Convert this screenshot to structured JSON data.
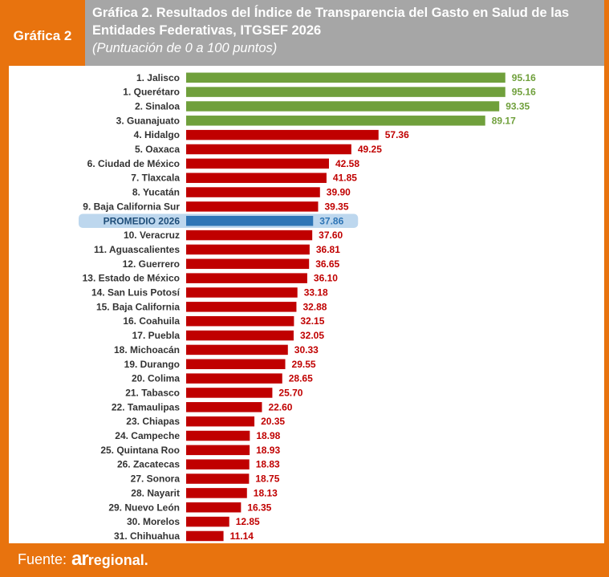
{
  "badge": "Gráfica 2",
  "header": {
    "title_line1": "Gráfica 2. Resultados del Índice de Transparencia del Gasto en Salud de las",
    "title_line2": "Entidades Federativas, ITGSEF 2026",
    "subtitle": "(Puntuación de 0 a 100 puntos)"
  },
  "footer": {
    "label": "Fuente:",
    "brand_prefix": "ar",
    "brand_suffix": "regional."
  },
  "colors": {
    "top": "#70a03c",
    "other": "#c00000",
    "average": "#2e75b6",
    "average_highlight": "#bdd7ee",
    "frame": "#e8730e",
    "header": "#a6a6a6"
  },
  "chart_data": {
    "type": "bar",
    "orientation": "horizontal",
    "xlim": [
      0,
      100
    ],
    "grid": false,
    "categories": [
      "1. Jalisco",
      "1. Querétaro",
      "2. Sinaloa",
      "3. Guanajuato",
      "4. Hidalgo",
      "5. Oaxaca",
      "6. Ciudad de México",
      "7. Tlaxcala",
      "8. Yucatán",
      "9. Baja California Sur",
      "PROMEDIO 2026",
      "10. Veracruz",
      "11. Aguascalientes",
      "12. Guerrero",
      "13. Estado de México",
      "14. San Luis Potosí",
      "15. Baja California",
      "16. Coahuila",
      "17. Puebla",
      "18. Michoacán",
      "19. Durango",
      "20. Colima",
      "21. Tabasco",
      "22. Tamaulipas",
      "23. Chiapas",
      "24. Campeche",
      "25. Quintana Roo",
      "26. Zacatecas",
      "27. Sonora",
      "28. Nayarit",
      "29. Nuevo León",
      "30. Morelos",
      "31. Chihuahua"
    ],
    "values": [
      95.16,
      95.16,
      93.35,
      89.17,
      57.36,
      49.25,
      42.58,
      41.85,
      39.9,
      39.35,
      37.86,
      37.6,
      36.81,
      36.65,
      36.1,
      33.18,
      32.88,
      32.15,
      32.05,
      30.33,
      29.55,
      28.65,
      25.7,
      22.6,
      20.35,
      18.98,
      18.93,
      18.83,
      18.75,
      18.13,
      16.35,
      12.85,
      11.14
    ],
    "value_labels": [
      "95.16",
      "95.16",
      "93.35",
      "89.17",
      "57.36",
      "49.25",
      "42.58",
      "41.85",
      "39.90",
      "39.35",
      "37.86",
      "37.60",
      "36.81",
      "36.65",
      "36.10",
      "33.18",
      "32.88",
      "32.15",
      "32.05",
      "30.33",
      "29.55",
      "28.65",
      "25.70",
      "22.60",
      "20.35",
      "18.98",
      "18.93",
      "18.83",
      "18.75",
      "18.13",
      "16.35",
      "12.85",
      "11.14"
    ],
    "groups": [
      "top",
      "top",
      "top",
      "top",
      "other",
      "other",
      "other",
      "other",
      "other",
      "other",
      "average",
      "other",
      "other",
      "other",
      "other",
      "other",
      "other",
      "other",
      "other",
      "other",
      "other",
      "other",
      "other",
      "other",
      "other",
      "other",
      "other",
      "other",
      "other",
      "other",
      "other",
      "other",
      "other"
    ]
  }
}
